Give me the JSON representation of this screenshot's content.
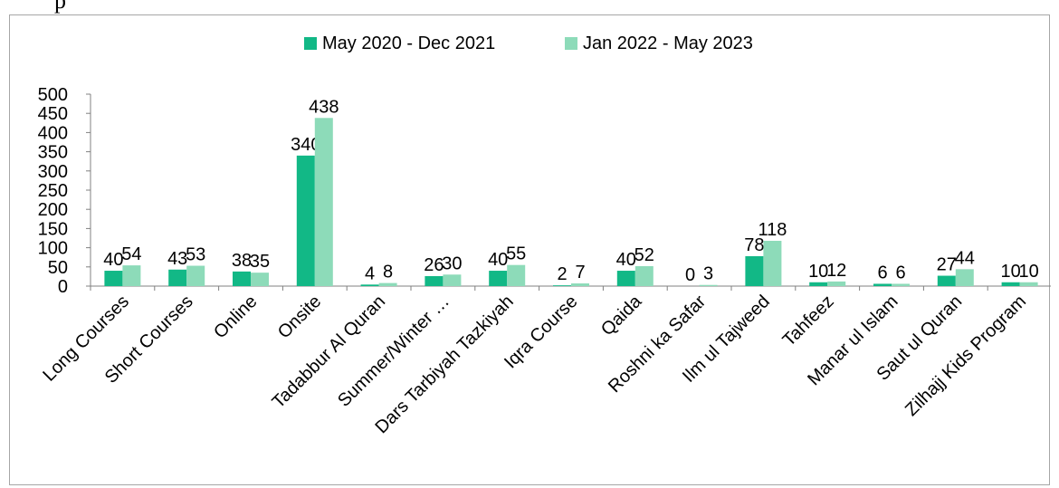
{
  "top_text": "p",
  "chart_data": {
    "type": "bar",
    "title": "",
    "xlabel": "",
    "ylabel": "",
    "ylim": [
      0,
      500
    ],
    "yticks": [
      0,
      50,
      100,
      150,
      200,
      250,
      300,
      350,
      400,
      450,
      500
    ],
    "grid": false,
    "legend": "top",
    "categories": [
      "Long Courses",
      "Short Courses",
      "Online",
      "Onsite",
      "Tadabbur Al Quran",
      "Summer/Winter …",
      "Dars Tarbiyah Tazkiyah",
      "Iqra Course",
      "Qaida",
      "Roshni ka Safar",
      "Ilm ul Tajweed",
      "Tahfeez",
      "Manar ul Islam",
      "Saut ul Quran",
      "Zilhajj Kids Program"
    ],
    "series": [
      {
        "name": "May 2020 - Dec 2021",
        "color": "#12b886",
        "values": [
          40,
          43,
          38,
          340,
          4,
          26,
          40,
          2,
          40,
          0,
          78,
          10,
          6,
          27,
          10
        ]
      },
      {
        "name": "Jan 2022 - May 2023",
        "color": "#8ddbb9",
        "values": [
          54,
          53,
          35,
          438,
          8,
          30,
          55,
          7,
          52,
          3,
          118,
          12,
          6,
          44,
          10
        ]
      }
    ]
  }
}
